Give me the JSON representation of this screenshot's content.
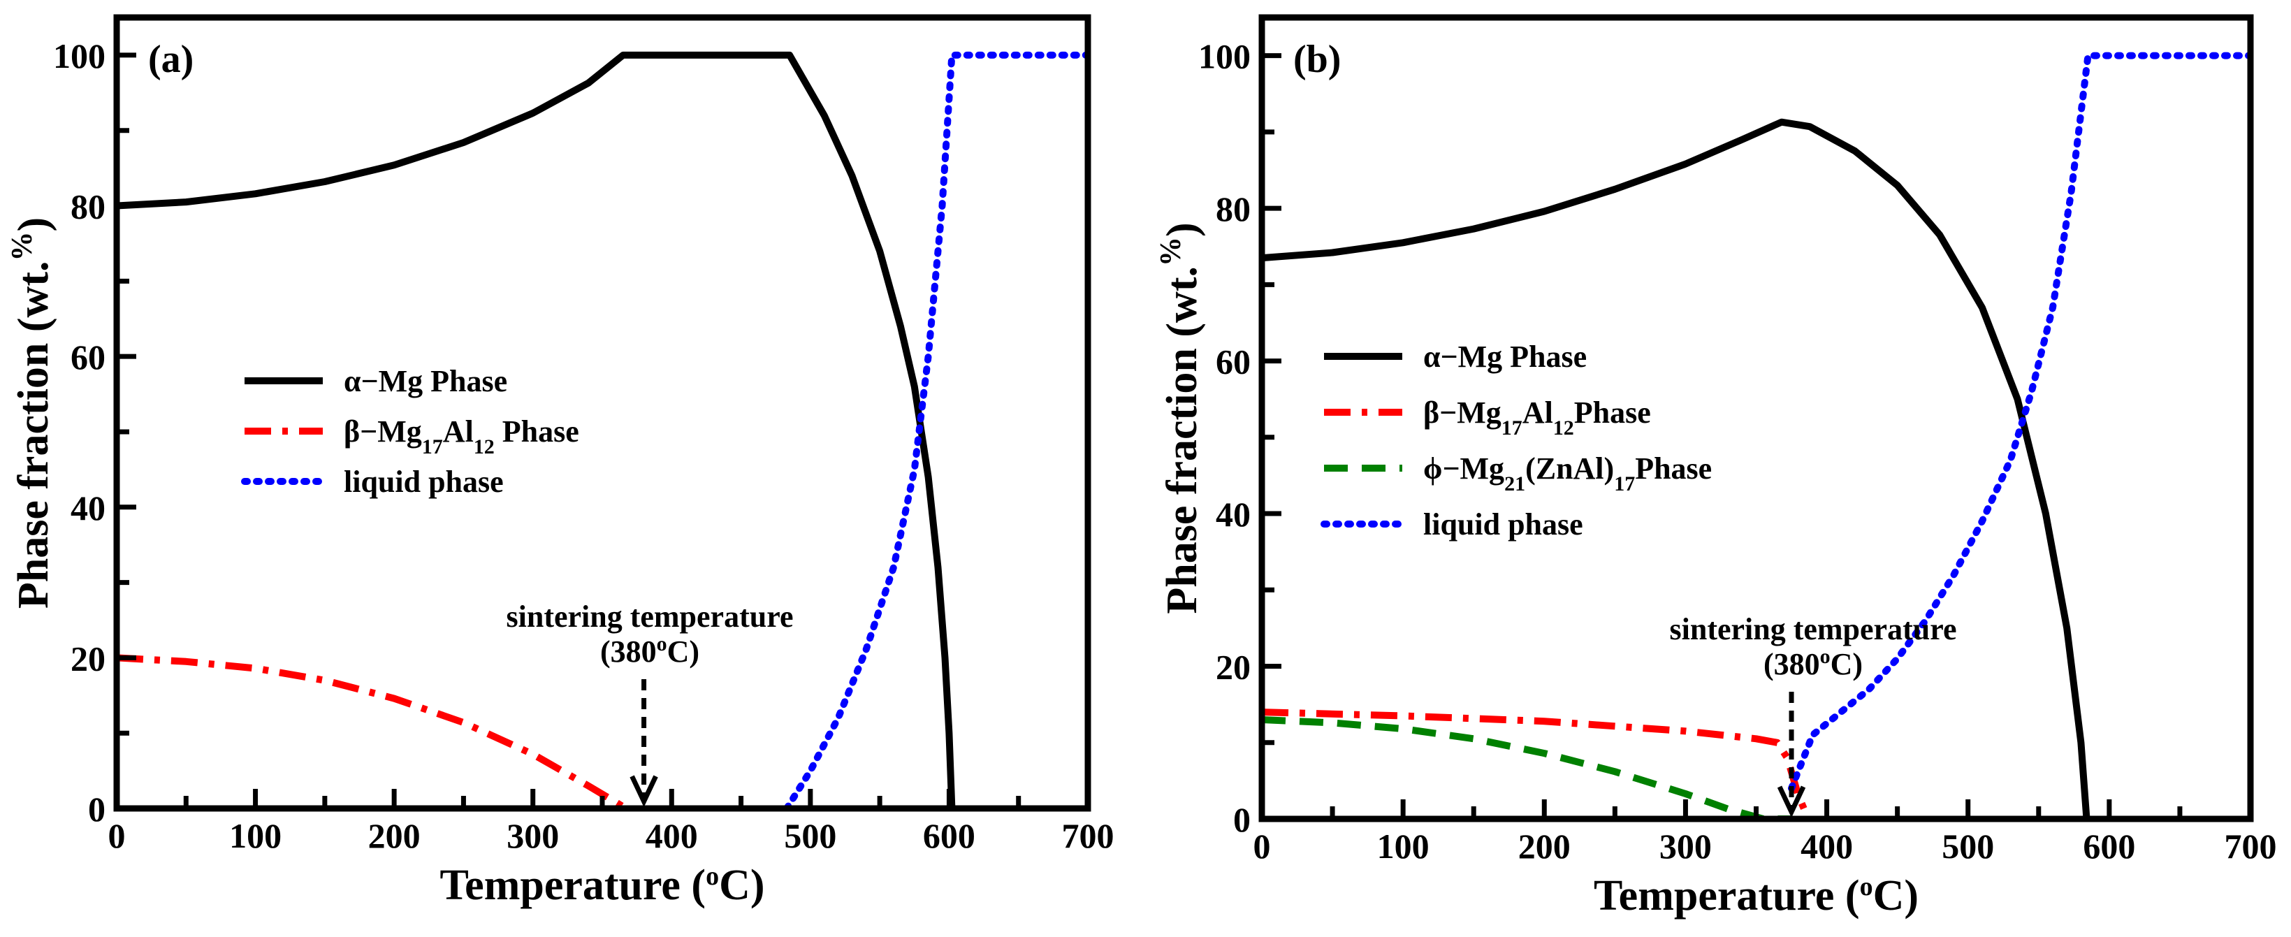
{
  "chart_data": [
    {
      "type": "line",
      "panel_label": "(a)",
      "xlabel": "Temperature (",
      "xlabel_sup": "o",
      "xlabel_tail": "C)",
      "ylabel": "Phase fraction (wt.%)",
      "ylabel_main": "Phase fraction (wt.",
      "ylabel_sup": "%",
      "ylabel_tail": ")",
      "xlim": [
        0,
        700
      ],
      "ylim": [
        0,
        105
      ],
      "xticks": [
        0,
        100,
        200,
        300,
        400,
        500,
        600,
        700
      ],
      "yticks": [
        0,
        20,
        40,
        60,
        80,
        100
      ],
      "xtick_labels": [
        "0",
        "100",
        "200",
        "300",
        "400",
        "500",
        "600",
        "700"
      ],
      "ytick_labels": [
        "0",
        "20",
        "40",
        "60",
        "80",
        "100"
      ],
      "legend_position": "middle-left",
      "series": [
        {
          "name": "α−Mg  Phase",
          "legend_parts": [
            "α−Mg  Phase"
          ],
          "color": "#000000",
          "style": "solid",
          "points": [
            [
              0,
              80
            ],
            [
              50,
              80.5
            ],
            [
              100,
              81.6
            ],
            [
              150,
              83.2
            ],
            [
              200,
              85.4
            ],
            [
              250,
              88.4
            ],
            [
              300,
              92.3
            ],
            [
              340,
              96.3
            ],
            [
              365,
              100
            ],
            [
              485,
              100
            ],
            [
              510,
              92
            ],
            [
              530,
              84
            ],
            [
              550,
              74
            ],
            [
              565,
              64
            ],
            [
              575,
              56
            ],
            [
              585,
              44
            ],
            [
              592,
              32
            ],
            [
              597,
              20
            ],
            [
              600,
              10
            ],
            [
              602,
              0
            ]
          ]
        },
        {
          "name": "β−Mg17Al12 Phase",
          "legend_parts": [
            "β−Mg",
            "17",
            "Al",
            "12",
            " Phase"
          ],
          "color": "#ff0000",
          "style": "dashdot",
          "points": [
            [
              0,
              20
            ],
            [
              50,
              19.5
            ],
            [
              100,
              18.6
            ],
            [
              150,
              17
            ],
            [
              200,
              14.6
            ],
            [
              250,
              11.4
            ],
            [
              300,
              7.2
            ],
            [
              340,
              3
            ],
            [
              360,
              0.8
            ],
            [
              367,
              0
            ]
          ]
        },
        {
          "name": "liquid phase",
          "legend_parts": [
            "liquid phase"
          ],
          "color": "#0000ff",
          "style": "dotted",
          "points": [
            [
              483,
              0
            ],
            [
              500,
              5
            ],
            [
              520,
              12
            ],
            [
              540,
              21
            ],
            [
              560,
              32
            ],
            [
              575,
              45
            ],
            [
              585,
              60
            ],
            [
              595,
              80
            ],
            [
              602,
              100
            ],
            [
              700,
              100
            ]
          ]
        }
      ],
      "annotations": [
        {
          "text_line1": "sintering temperature",
          "text_line2_pre": "(380",
          "text_line2_sup": "o",
          "text_line2_post": "C)",
          "x": 380
        }
      ]
    },
    {
      "type": "line",
      "panel_label": "(b)",
      "xlabel": "Temperature (",
      "xlabel_sup": "o",
      "xlabel_tail": "C)",
      "ylabel": "Phase fraction (wt.%)",
      "ylabel_main": "Phase fraction (wt.",
      "ylabel_sup": "%",
      "ylabel_tail": ")",
      "xlim": [
        0,
        700
      ],
      "ylim": [
        0,
        105
      ],
      "xticks": [
        0,
        100,
        200,
        300,
        400,
        500,
        600,
        700
      ],
      "yticks": [
        0,
        20,
        40,
        60,
        80,
        100
      ],
      "xtick_labels": [
        "0",
        "100",
        "200",
        "300",
        "400",
        "500",
        "600",
        "700"
      ],
      "ytick_labels": [
        "0",
        "20",
        "40",
        "60",
        "80",
        "100"
      ],
      "legend_position": "middle-left",
      "series": [
        {
          "name": "α−Mg Phase",
          "legend_parts": [
            "α−Mg Phase"
          ],
          "color": "#000000",
          "style": "solid",
          "points": [
            [
              0,
              73.5
            ],
            [
              50,
              74.2
            ],
            [
              100,
              75.5
            ],
            [
              150,
              77.3
            ],
            [
              200,
              79.6
            ],
            [
              250,
              82.5
            ],
            [
              300,
              85.8
            ],
            [
              340,
              89
            ],
            [
              368,
              91.3
            ],
            [
              388,
              90.7
            ],
            [
              420,
              87.5
            ],
            [
              450,
              83
            ],
            [
              480,
              76.5
            ],
            [
              510,
              67
            ],
            [
              535,
              55
            ],
            [
              555,
              40
            ],
            [
              570,
              25
            ],
            [
              580,
              10
            ],
            [
              584,
              0
            ]
          ]
        },
        {
          "name": "β−Mg17Al12Phase",
          "legend_parts": [
            "β−Mg",
            "17",
            "Al",
            "12",
            "Phase"
          ],
          "color": "#ff0000",
          "style": "dashdot",
          "points": [
            [
              0,
              14
            ],
            [
              100,
              13.5
            ],
            [
              200,
              12.8
            ],
            [
              300,
              11.5
            ],
            [
              350,
              10.5
            ],
            [
              365,
              10
            ],
            [
              372,
              8
            ],
            [
              380,
              3
            ],
            [
              387,
              0
            ]
          ]
        },
        {
          "name": "ϕ−Mg21(ZnAl)17Phase",
          "legend_parts": [
            "ϕ−Mg",
            "21",
            "(ZnAl)",
            "17",
            "Phase"
          ],
          "color": "#008000",
          "style": "dashed",
          "points": [
            [
              0,
              13
            ],
            [
              50,
              12.6
            ],
            [
              100,
              11.8
            ],
            [
              150,
              10.5
            ],
            [
              200,
              8.6
            ],
            [
              250,
              6.2
            ],
            [
              300,
              3.3
            ],
            [
              330,
              1.3
            ],
            [
              355,
              0
            ],
            [
              375,
              0
            ]
          ]
        },
        {
          "name": "liquid phase",
          "legend_parts": [
            "liquid phase"
          ],
          "color": "#0000ff",
          "style": "dotted",
          "points": [
            [
              375,
              4
            ],
            [
              390,
              11
            ],
            [
              410,
              14
            ],
            [
              430,
              17
            ],
            [
              450,
              21
            ],
            [
              470,
              26
            ],
            [
              490,
              32
            ],
            [
              510,
              39
            ],
            [
              530,
              47
            ],
            [
              545,
              56
            ],
            [
              560,
              67
            ],
            [
              573,
              82
            ],
            [
              585,
              100
            ],
            [
              700,
              100
            ]
          ]
        }
      ],
      "annotations": [
        {
          "text_line1": "sintering temperature",
          "text_line2_pre": "(380",
          "text_line2_sup": "o",
          "text_line2_post": "C)",
          "x": 375
        }
      ]
    }
  ]
}
